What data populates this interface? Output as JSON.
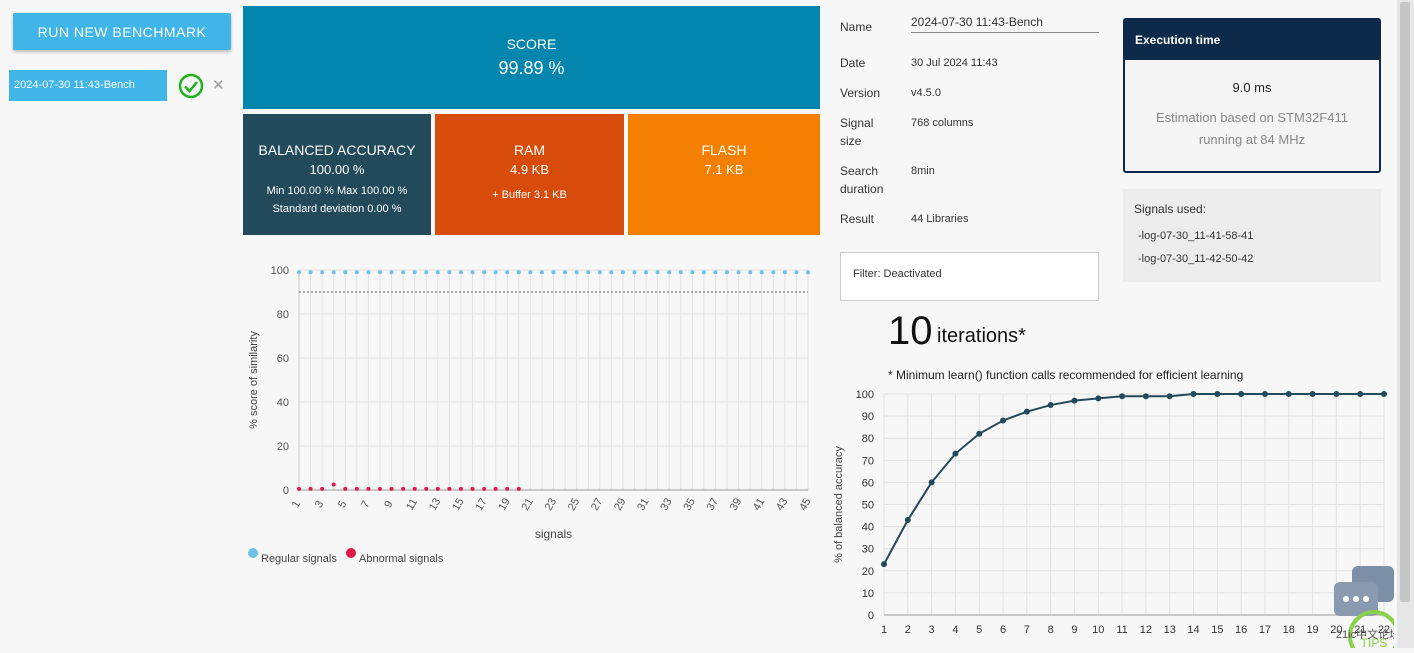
{
  "sidebar": {
    "run_button": "RUN NEW BENCHMARK",
    "benchmarks": [
      {
        "label": "2024-07-30 11:43-Bench"
      }
    ]
  },
  "tiles": {
    "score": {
      "title": "SCORE",
      "value": "99.89 %"
    },
    "balanced_accuracy": {
      "title": "BALANCED ACCURACY",
      "value": "100.00 %",
      "line1": "Min 100.00 % Max 100.00 %",
      "line2": "Standard deviation 0.00 %"
    },
    "ram": {
      "title": "RAM",
      "value": "4.9 KB",
      "sub": "+ Buffer 3.1 KB"
    },
    "flash": {
      "title": "FLASH",
      "value": "7.1 KB"
    }
  },
  "info": {
    "name_label": "Name",
    "name_value": "2024-07-30 11:43-Bench",
    "date_label": "Date",
    "date_value": "30 Jul 2024 11:43",
    "version_label": "Version",
    "version_value": "v4.5.0",
    "signal_size_label_1": "Signal",
    "signal_size_label_2": "size",
    "signal_size_value": "768 columns",
    "search_duration_label_1": "Search",
    "search_duration_label_2": "duration",
    "search_duration_value": "8min",
    "result_label": "Result",
    "result_value": "44 Libraries",
    "filter": "Filter: Deactivated"
  },
  "execution": {
    "title": "Execution time",
    "value": "9.0 ms",
    "note_line1": "Estimation based on STM32F411",
    "note_line2": "running at 84 MHz"
  },
  "signals_used": {
    "title": "Signals used:",
    "items": [
      "-log-07-30_11-41-58-41",
      "-log-07-30_11-42-50-42"
    ]
  },
  "iterations": {
    "count": "10",
    "word": "iterations*",
    "note": "* Minimum learn() function calls recommended for efficient learning"
  },
  "colors": {
    "regular": "#6ec1e4",
    "abnormal": "#e0184a",
    "line": "#234a5a"
  },
  "chart_data": [
    {
      "type": "scatter",
      "title": "",
      "xlabel": "signals",
      "ylabel": "% score of similarity",
      "ylim": [
        0,
        100
      ],
      "yticks": [
        0,
        20,
        40,
        60,
        80,
        100
      ],
      "xticks": [
        1,
        3,
        5,
        7,
        9,
        11,
        13,
        15,
        17,
        19,
        21,
        23,
        25,
        27,
        29,
        31,
        33,
        35,
        37,
        39,
        41,
        43,
        45
      ],
      "threshold": 90,
      "legend": [
        "Regular signals",
        "Abnormal signals"
      ],
      "series": [
        {
          "name": "Regular signals",
          "x": [
            1,
            2,
            3,
            4,
            5,
            6,
            7,
            8,
            9,
            10,
            11,
            12,
            13,
            14,
            15,
            16,
            17,
            18,
            19,
            20,
            21,
            22,
            23,
            24,
            25,
            26,
            27,
            28,
            29,
            30,
            31,
            32,
            33,
            34,
            35,
            36,
            37,
            38,
            39,
            40,
            41,
            42,
            43,
            44,
            45
          ],
          "values": [
            99,
            99,
            99,
            99,
            99,
            99,
            99,
            99,
            99,
            99,
            99,
            99,
            99,
            99,
            99,
            99,
            99,
            99,
            99,
            99,
            99,
            99,
            99,
            99,
            99,
            99,
            99,
            99,
            99,
            99,
            99,
            99,
            99,
            99,
            99,
            99,
            99,
            99,
            99,
            99,
            99,
            99,
            99,
            99,
            99
          ]
        },
        {
          "name": "Abnormal signals",
          "x": [
            1,
            2,
            3,
            4,
            5,
            6,
            7,
            8,
            9,
            10,
            11,
            12,
            13,
            14,
            15,
            16,
            17,
            18,
            19,
            20
          ],
          "values": [
            0.5,
            0.5,
            0.5,
            2.5,
            0.5,
            0.5,
            0.5,
            0.5,
            0.5,
            0.5,
            0.5,
            0.5,
            0.5,
            0.5,
            0.5,
            0.5,
            0.5,
            0.5,
            0.5,
            0.5
          ]
        }
      ]
    },
    {
      "type": "line",
      "title": "",
      "xlabel": "",
      "ylabel": "% of balanced accuracy",
      "ylim": [
        0,
        100
      ],
      "yticks": [
        0,
        10,
        20,
        30,
        40,
        50,
        60,
        70,
        80,
        90,
        100
      ],
      "x": [
        1,
        2,
        3,
        4,
        5,
        6,
        7,
        8,
        9,
        10,
        11,
        12,
        13,
        14,
        15,
        16,
        17,
        18,
        19,
        20,
        21,
        22
      ],
      "xtick_labels": [
        "1",
        "2",
        "3",
        "4",
        "5",
        "6",
        "7",
        "8",
        "9",
        "10",
        "11",
        "12",
        "13",
        "14",
        "15",
        "16",
        "17",
        "18",
        "19",
        "20",
        "21",
        "22"
      ],
      "values": [
        23,
        43,
        60,
        73,
        82,
        88,
        92,
        95,
        97,
        98,
        99,
        99,
        99,
        100,
        100,
        100,
        100,
        100,
        100,
        100,
        100,
        100
      ]
    }
  ],
  "watermark": {
    "badge": "TIPS",
    "text": "21ic中文论坛"
  }
}
